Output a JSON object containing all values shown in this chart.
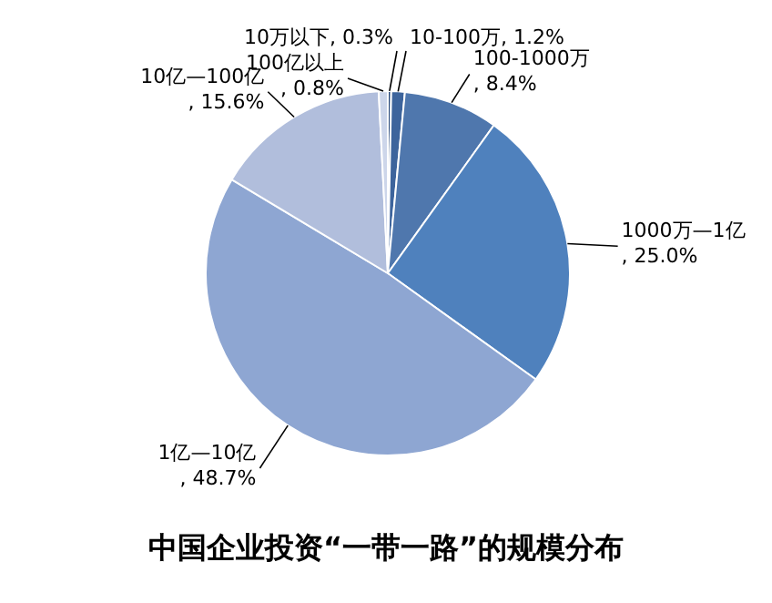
{
  "chart_data": {
    "type": "pie",
    "title": "中国企业投资“一带一路”的规模分布",
    "categories": [
      "10万以下",
      "10-100万",
      "100-1000万",
      "1000万—1亿",
      "1亿—10亿",
      "10亿—100亿",
      "100亿以上"
    ],
    "values": [
      0.3,
      1.2,
      8.4,
      25.0,
      48.7,
      15.6,
      0.8
    ],
    "value_labels": [
      ", 0.3%",
      ", 1.2%",
      ", 8.4%",
      ", 25.0%",
      ", 48.7%",
      ", 15.6%",
      ", 0.8%"
    ],
    "colors": [
      "#2a4a7a",
      "#3d649c",
      "#4f77ad",
      "#4f81bd",
      "#8ea6d2",
      "#b1bedc",
      "#cdd6ea"
    ]
  }
}
